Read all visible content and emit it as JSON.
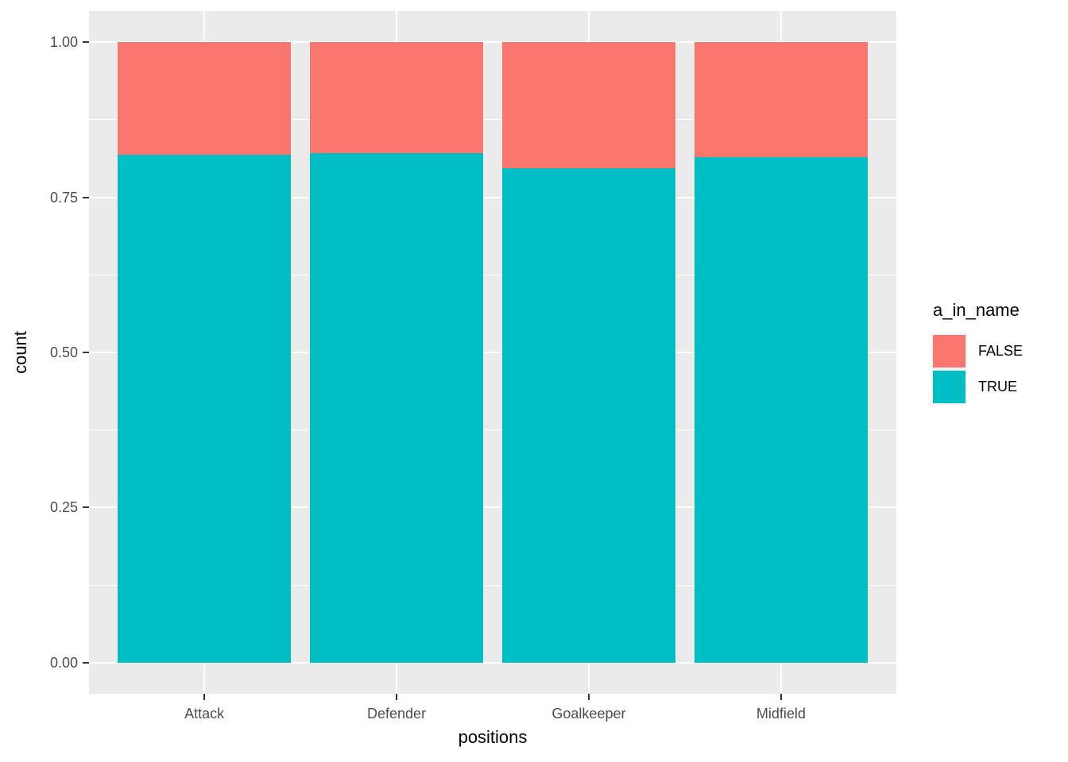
{
  "figure": {
    "xlabel": "positions",
    "ylabel": "count",
    "legend_title": "a_in_name"
  },
  "chart_data": {
    "type": "bar",
    "stacked": true,
    "position": "fill",
    "title": "",
    "xlabel": "positions",
    "ylabel": "count",
    "categories": [
      "Attack",
      "Defender",
      "Goalkeeper",
      "Midfield"
    ],
    "series": [
      {
        "name": "FALSE",
        "color": "#F8766D",
        "values": [
          0.181,
          0.179,
          0.203,
          0.185
        ]
      },
      {
        "name": "TRUE",
        "color": "#00BFC4",
        "values": [
          0.819,
          0.821,
          0.797,
          0.815
        ]
      }
    ],
    "ylim": [
      0,
      1
    ],
    "yticks": [
      0,
      0.25,
      0.5,
      0.75,
      1
    ],
    "ytick_labels": [
      "0.00",
      "0.25",
      "0.50",
      "0.75",
      "1.00"
    ],
    "y_minor_ticks": [
      0.125,
      0.375,
      0.625,
      0.875
    ],
    "grid": true,
    "legend": {
      "title": "a_in_name",
      "position": "right",
      "entries": [
        "FALSE",
        "TRUE"
      ]
    },
    "colors": {
      "panel_bg": "#EBEBEB",
      "grid": "#FFFFFF",
      "tick": "#333333",
      "tick_label": "#4D4D4D",
      "axis_title": "#000000"
    }
  }
}
